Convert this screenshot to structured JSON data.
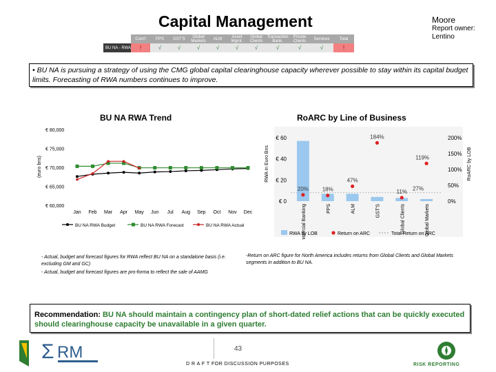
{
  "header": {
    "title": "Capital Management",
    "owner_name": "Moore",
    "report_owner_label": "Report owner:",
    "report_owner_name": "Lentino"
  },
  "status_table": {
    "row_label": "BU NA - RWA",
    "columns": [
      "Com'l",
      "PPS",
      "GST'S",
      "Global Markets",
      "ALM",
      "Asset Mgmt.",
      "Global Clients",
      "Transaction Bank.",
      "Private Clients",
      "Services",
      "Total"
    ],
    "values": [
      "!",
      "√",
      "√",
      "√",
      "√",
      "√",
      "√",
      "√",
      "√",
      "√",
      "!"
    ],
    "colors": {
      "ok": "#2e7d32",
      "alert": "#f28080"
    }
  },
  "bullet": "• BU NA is pursuing a strategy of using the CMG global capital clearinghouse capacity wherever possible to stay within its capital budget limits. Forecasting of RWA numbers continues to improve.",
  "chart_data": [
    {
      "type": "line",
      "title": "BU NA RWA Trend",
      "ylabel": "(euro bns)",
      "categories": [
        "Jan",
        "Feb",
        "Mar",
        "Apr",
        "May",
        "Jun",
        "Jul",
        "Aug",
        "Sep",
        "Oct",
        "Nov",
        "Dec"
      ],
      "ylim": [
        60,
        80
      ],
      "yticks": [
        "€ 60,000",
        "€ 65,000",
        "€ 70,000",
        "€ 75,000",
        "€ 80,000"
      ],
      "series": [
        {
          "name": "BU NA RWA Budget",
          "color": "#000000",
          "values": [
            67.6,
            68.2,
            68.5,
            68.7,
            68.5,
            68.8,
            68.9,
            69.1,
            69.2,
            69.4,
            69.6,
            69.7
          ]
        },
        {
          "name": "BU NA RWA Forecast",
          "color": "#2e8b2e",
          "values": [
            70.3,
            70.3,
            71.1,
            71.1,
            69.9,
            69.9,
            69.9,
            69.9,
            69.9,
            69.9,
            69.9,
            69.9
          ]
        },
        {
          "name": "BU NA RWA Actual",
          "color": "#cc2222",
          "values": [
            66.8,
            68.4,
            71.6,
            71.6,
            69.8,
            null,
            null,
            null,
            null,
            null,
            null,
            null
          ]
        }
      ]
    },
    {
      "type": "bar",
      "title": "RoARC by Line of Business",
      "ylabel": "RWA in Euro Bns",
      "y2label": "RoARC by LOB",
      "categories": [
        "Commercial Banking",
        "PPS",
        "ALM",
        "GST'S",
        "Global Clients",
        "Global Markets"
      ],
      "ylim": [
        0,
        60
      ],
      "yticks": [
        "€ 0",
        "€ 20",
        "€ 40",
        "€ 60"
      ],
      "y2lim": [
        0,
        2
      ],
      "y2ticks": [
        "0%",
        "50%",
        "100%",
        "150%",
        "200%"
      ],
      "series": [
        {
          "name": "RWA by LOB",
          "color": "#9bc8ee",
          "values": [
            57,
            7,
            7,
            4,
            3,
            2
          ]
        },
        {
          "name": "Return on ARC",
          "color": "#dd2222",
          "values": [
            0.2,
            0.18,
            0.47,
            1.84,
            0.11,
            1.19
          ]
        }
      ],
      "data_labels": [
        "20%",
        "18%",
        "47%",
        "184%",
        "11%",
        "119%"
      ],
      "total_label": "27%",
      "total_return": 0.27,
      "legend": [
        "RWA by LOB",
        "Return on ARC",
        "Total Return on ARC"
      ]
    }
  ],
  "footnotes": {
    "left1": "- Actual, budget and forecast figures for RWA reflect BU NA on a standalone basis (i.e. excluding GM and GC)",
    "left2": "- Actual, budget and forecast figures are pro-forma to reflect the sale of AAMG",
    "right": "-Return on ARC figure for North America includes returns from Global Clients and Global Markets segments in addition to BU NA."
  },
  "recommendation": {
    "label": "Recommendation:",
    "text": "BU NA should maintain a contingency plan of short-dated relief actions that can be quickly executed should clearinghouse capacity be unavailable in a given quarter."
  },
  "footer": {
    "page": "43",
    "draft": "D R A F T  FOR DISCUSSION PURPOSES",
    "logo_text": "RM",
    "risk": "RISK REPORTING"
  }
}
